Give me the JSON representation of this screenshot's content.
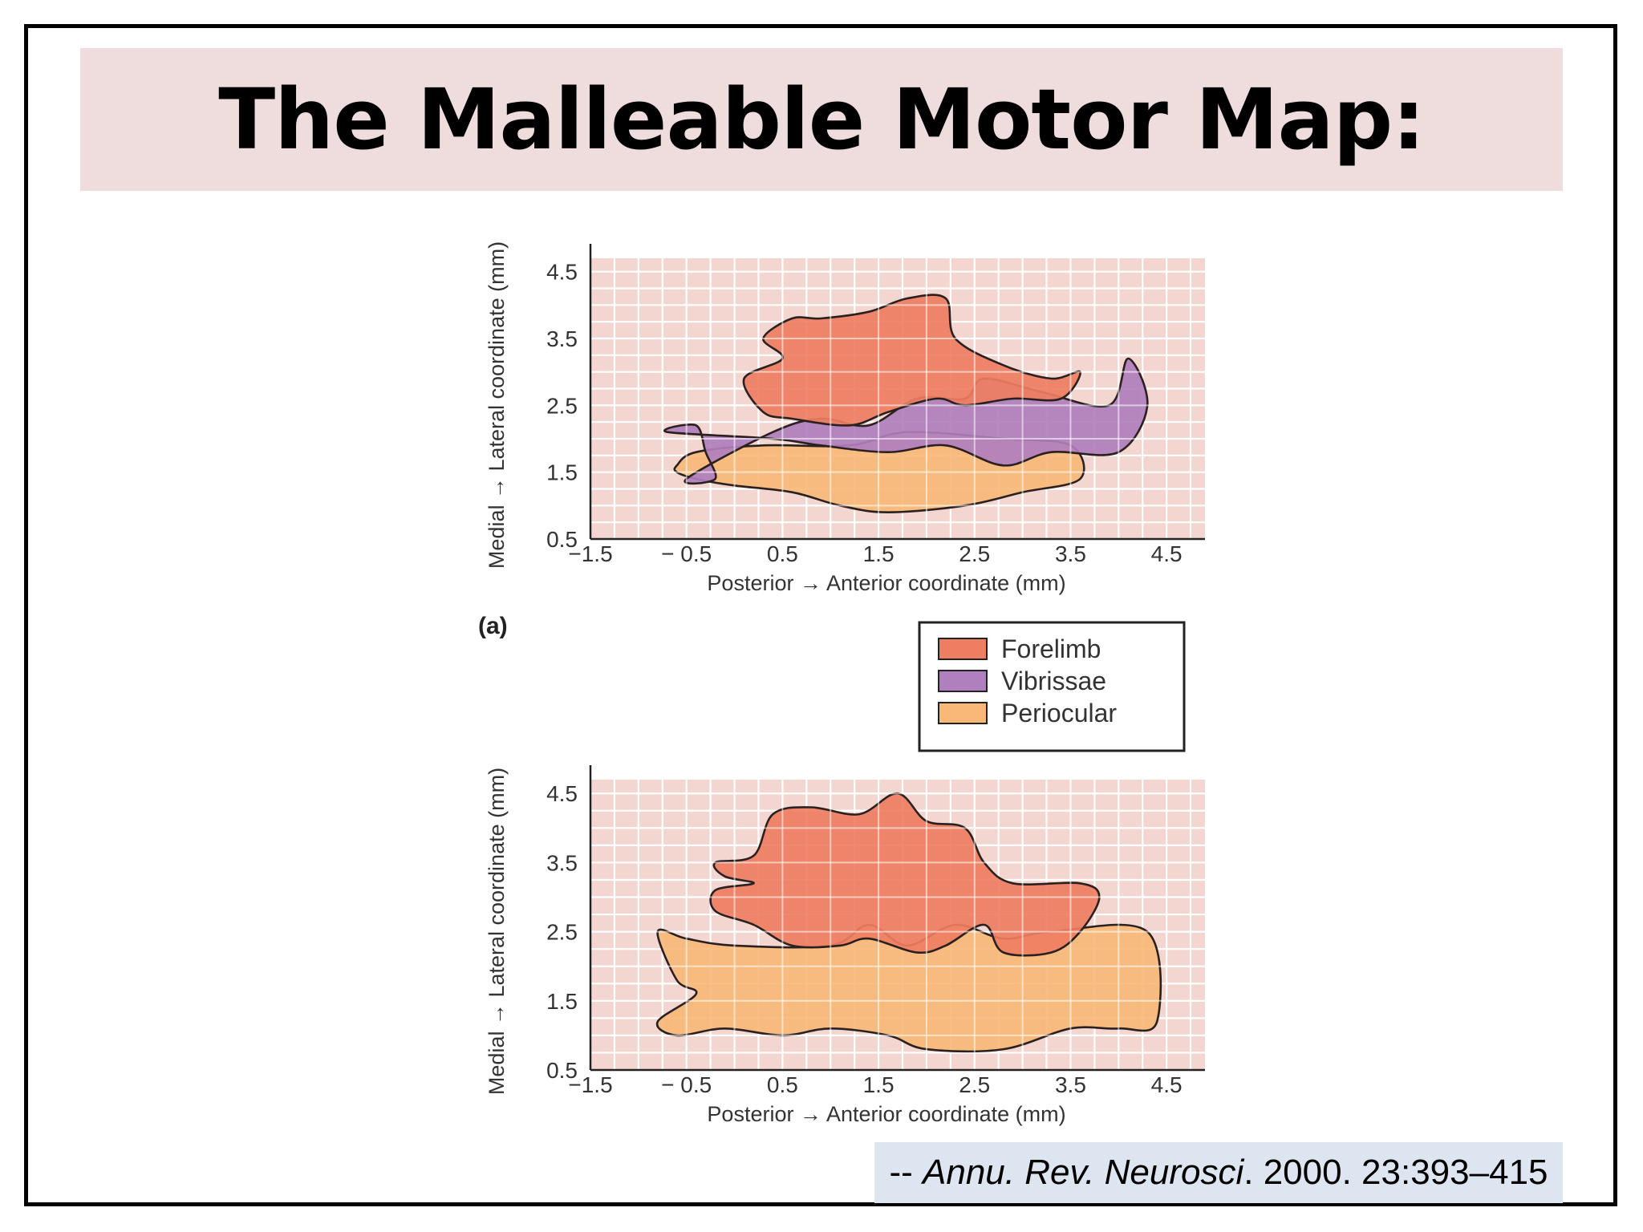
{
  "slide": {
    "title": "The Malleable Motor Map:",
    "citation": {
      "prefix": "-- ",
      "journal": "Annu. Rev. Neurosci",
      "rest": ". 2000. 23:393–415"
    }
  },
  "panel_label": "(a)",
  "legend": [
    {
      "label": "Forelimb",
      "color": "#ee7e62"
    },
    {
      "label": "Vibrissae",
      "color": "#b07fbd"
    },
    {
      "label": "Periocular",
      "color": "#f7b878"
    }
  ],
  "chart_data": [
    {
      "type": "area",
      "ylabel": "Medial → Lateral coordinate (mm)",
      "xlabel": "Posterior → Anterior coordinate (mm)",
      "xlim": [
        -1.5,
        4.9
      ],
      "ylim": [
        0.5,
        4.7
      ],
      "x_ticks": [
        "−1.5",
        "− 0.5",
        "0.5",
        "1.5",
        "2.5",
        "3.5",
        "4.5"
      ],
      "x_tick_values": [
        -1.5,
        -0.5,
        0.5,
        1.5,
        2.5,
        3.5,
        4.5
      ],
      "y_ticks": [
        "0.5",
        "1.5",
        "2.5",
        "3.5",
        "4.5"
      ],
      "y_tick_values": [
        0.5,
        1.5,
        2.5,
        3.5,
        4.5
      ],
      "grid": true,
      "series": [
        {
          "name": "Periocular",
          "color": "#f7b878",
          "points": [
            [
              -0.6,
              1.6
            ],
            [
              -0.4,
              1.8
            ],
            [
              0.3,
              1.9
            ],
            [
              1.2,
              1.9
            ],
            [
              1.8,
              2.1
            ],
            [
              2.8,
              2.0
            ],
            [
              3.5,
              1.9
            ],
            [
              3.6,
              1.4
            ],
            [
              3.0,
              1.2
            ],
            [
              2.4,
              1.0
            ],
            [
              1.6,
              0.9
            ],
            [
              1.1,
              1.0
            ],
            [
              0.6,
              1.2
            ],
            [
              0.0,
              1.3
            ],
            [
              -0.4,
              1.4
            ],
            [
              -0.6,
              1.5
            ]
          ]
        },
        {
          "name": "Vibrissae",
          "color": "#b07fbd",
          "points": [
            [
              -0.7,
              2.1
            ],
            [
              -0.4,
              2.2
            ],
            [
              -0.3,
              1.8
            ],
            [
              -0.2,
              1.4
            ],
            [
              -0.5,
              1.4
            ],
            [
              0.4,
              2.1
            ],
            [
              0.9,
              2.3
            ],
            [
              1.4,
              2.2
            ],
            [
              1.9,
              2.6
            ],
            [
              2.4,
              2.6
            ],
            [
              2.6,
              2.9
            ],
            [
              3.2,
              2.7
            ],
            [
              3.9,
              2.5
            ],
            [
              4.1,
              3.2
            ],
            [
              4.3,
              2.5
            ],
            [
              4.0,
              1.8
            ],
            [
              3.3,
              1.8
            ],
            [
              2.8,
              1.6
            ],
            [
              2.2,
              1.9
            ],
            [
              1.6,
              1.8
            ],
            [
              0.9,
              1.9
            ],
            [
              0.4,
              2.0
            ]
          ]
        },
        {
          "name": "Forelimb",
          "color": "#ee7e62",
          "points": [
            [
              0.6,
              3.8
            ],
            [
              0.9,
              3.8
            ],
            [
              1.4,
              3.9
            ],
            [
              1.8,
              4.1
            ],
            [
              2.2,
              4.1
            ],
            [
              2.3,
              3.5
            ],
            [
              2.8,
              3.1
            ],
            [
              3.3,
              2.9
            ],
            [
              3.6,
              3.0
            ],
            [
              3.4,
              2.6
            ],
            [
              2.9,
              2.6
            ],
            [
              2.4,
              2.5
            ],
            [
              2.1,
              2.6
            ],
            [
              1.6,
              2.4
            ],
            [
              1.2,
              2.2
            ],
            [
              0.6,
              2.3
            ],
            [
              0.3,
              2.4
            ],
            [
              0.1,
              2.9
            ],
            [
              0.5,
              3.2
            ],
            [
              0.3,
              3.5
            ]
          ]
        }
      ]
    },
    {
      "type": "area",
      "ylabel": "Medial → Lateral coordinate (mm)",
      "xlabel": "Posterior → Anterior coordinate (mm)",
      "xlim": [
        -1.5,
        4.9
      ],
      "ylim": [
        0.5,
        4.7
      ],
      "x_ticks": [
        "−1.5",
        "− 0.5",
        "0.5",
        "1.5",
        "2.5",
        "3.5",
        "4.5"
      ],
      "x_tick_values": [
        -1.5,
        -0.5,
        0.5,
        1.5,
        2.5,
        3.5,
        4.5
      ],
      "y_ticks": [
        "0.5",
        "1.5",
        "2.5",
        "3.5",
        "4.5"
      ],
      "y_tick_values": [
        0.5,
        1.5,
        2.5,
        3.5,
        4.5
      ],
      "grid": true,
      "series": [
        {
          "name": "Periocular",
          "color": "#f7b878",
          "points": [
            [
              -0.8,
              2.5
            ],
            [
              -0.5,
              2.4
            ],
            [
              0.0,
              2.3
            ],
            [
              1.0,
              2.3
            ],
            [
              1.4,
              2.6
            ],
            [
              1.8,
              2.3
            ],
            [
              2.3,
              2.6
            ],
            [
              2.8,
              2.4
            ],
            [
              3.3,
              2.5
            ],
            [
              4.3,
              2.5
            ],
            [
              4.4,
              1.2
            ],
            [
              4.0,
              1.1
            ],
            [
              3.5,
              1.1
            ],
            [
              2.8,
              0.8
            ],
            [
              2.0,
              0.8
            ],
            [
              1.6,
              1.0
            ],
            [
              1.0,
              1.1
            ],
            [
              0.5,
              1.0
            ],
            [
              -0.1,
              1.1
            ],
            [
              -0.6,
              1.0
            ],
            [
              -0.8,
              1.2
            ],
            [
              -0.4,
              1.6
            ],
            [
              -0.6,
              1.8
            ]
          ]
        },
        {
          "name": "Forelimb",
          "color": "#ee7e62",
          "points": [
            [
              -0.2,
              3.5
            ],
            [
              0.2,
              3.6
            ],
            [
              0.4,
              4.2
            ],
            [
              0.8,
              4.3
            ],
            [
              1.3,
              4.2
            ],
            [
              1.7,
              4.5
            ],
            [
              2.0,
              4.1
            ],
            [
              2.4,
              4.0
            ],
            [
              2.6,
              3.5
            ],
            [
              2.9,
              3.2
            ],
            [
              3.6,
              3.2
            ],
            [
              3.8,
              3.0
            ],
            [
              3.6,
              2.5
            ],
            [
              3.3,
              2.2
            ],
            [
              2.8,
              2.2
            ],
            [
              2.6,
              2.6
            ],
            [
              2.2,
              2.3
            ],
            [
              1.9,
              2.2
            ],
            [
              1.4,
              2.4
            ],
            [
              1.1,
              2.3
            ],
            [
              0.6,
              2.3
            ],
            [
              0.2,
              2.6
            ],
            [
              -0.2,
              2.8
            ],
            [
              -0.2,
              3.1
            ],
            [
              0.2,
              3.2
            ],
            [
              -0.1,
              3.3
            ]
          ]
        }
      ]
    }
  ]
}
